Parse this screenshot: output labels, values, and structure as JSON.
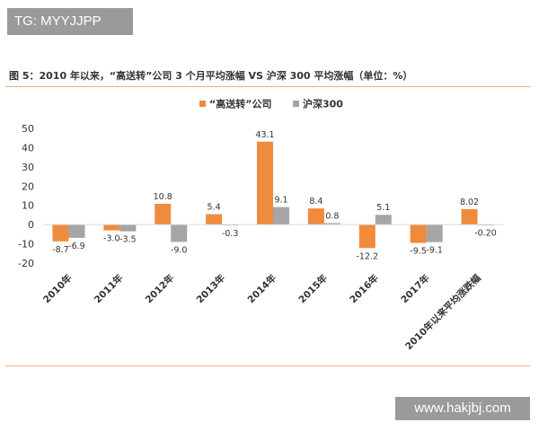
{
  "watermark_top": "TG: MYYJJPP",
  "watermark_bottom": "www.hakjbj.com",
  "caption": "图 5：2010 年以来，“高送转”公司 3 个月平均涨幅 VS 沪深 300 平均涨幅（单位：%）",
  "colors": {
    "series1": "#f08a3c",
    "series2": "#a5a5a5",
    "axis": "#d9d9d9",
    "text": "#333333"
  },
  "chart_data": {
    "type": "bar",
    "title": "",
    "xlabel": "",
    "ylabel": "",
    "ylim": [
      -20,
      50
    ],
    "yticks": [
      -20,
      -10,
      0,
      10,
      20,
      30,
      40,
      50
    ],
    "ytick_labels": [
      "-20",
      "-10",
      "0",
      "10",
      "20",
      "30",
      "40",
      "50"
    ],
    "grid": false,
    "legend_position": "top-center",
    "categories": [
      "2010年",
      "2011年",
      "2012年",
      "2013年",
      "2014年",
      "2015年",
      "2016年",
      "2017年",
      "2010年以来平均涨跌幅"
    ],
    "series": [
      {
        "name": "“高送转”公司",
        "values": [
          -8.7,
          -3.0,
          10.8,
          5.4,
          43.1,
          8.4,
          -12.2,
          -9.5,
          8.02
        ],
        "labels": [
          "-8.7",
          "-3.0",
          "10.8",
          "5.4",
          "43.1",
          "8.4",
          "-12.2",
          "-9.5",
          "8.02"
        ]
      },
      {
        "name": "沪深300",
        "values": [
          -6.9,
          -3.5,
          -9.0,
          -0.3,
          9.1,
          0.8,
          5.1,
          -9.1,
          -0.2
        ],
        "labels": [
          "-6.9",
          "-3.5",
          "-9.0",
          "-0.3",
          "9.1",
          "0.8",
          "5.1",
          "-9.1",
          "-0.20"
        ]
      }
    ]
  }
}
